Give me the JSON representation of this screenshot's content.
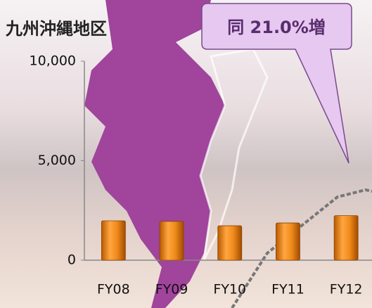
{
  "chart_data": {
    "type": "bar",
    "title": "九州沖縄地区",
    "annotation": "同 21.0%増",
    "categories": [
      "FY08",
      "FY09",
      "FY10",
      "FY11",
      "FY12"
    ],
    "values": [
      1980,
      1950,
      1730,
      1870,
      2240
    ],
    "color": "#f08a1c",
    "ylim": [
      0,
      10000
    ],
    "yticks": [
      0,
      {
        "value": 5000,
        "label": "5,000"
      },
      {
        "value": 10000,
        "label": "10,000"
      }
    ],
    "grid": false
  }
}
